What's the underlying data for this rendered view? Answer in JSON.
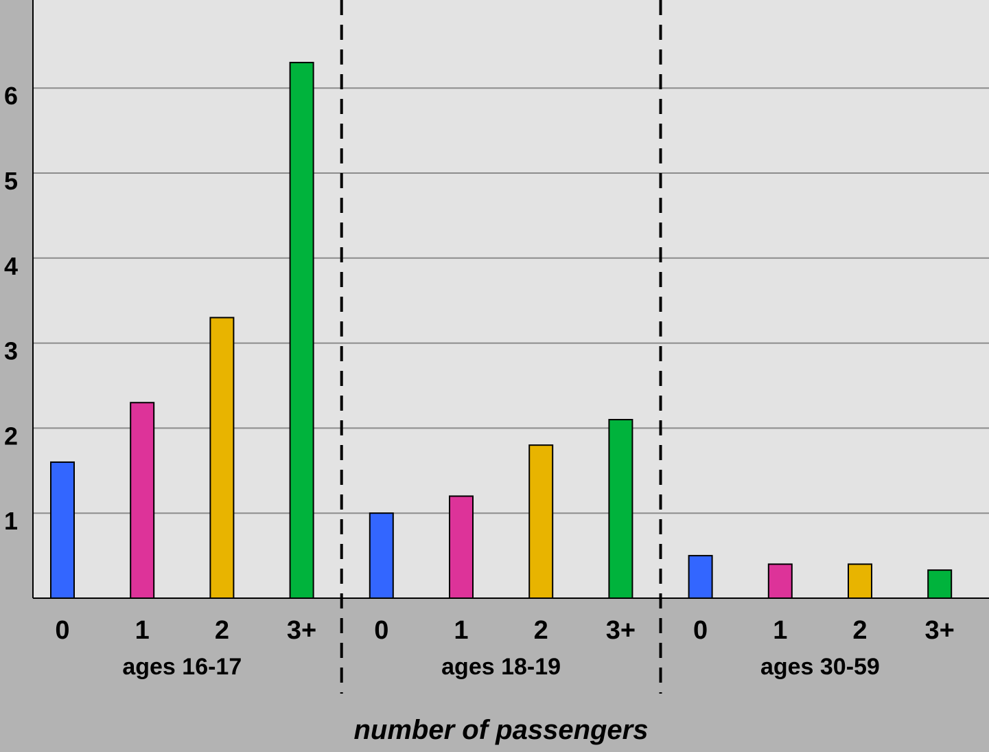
{
  "chart_data": {
    "type": "bar",
    "xlabel": "number of passengers",
    "ylabel": "",
    "ylim": [
      0,
      7
    ],
    "yticks": [
      1,
      2,
      3,
      4,
      5,
      6
    ],
    "grid": true,
    "groups": [
      {
        "label": "ages 16-17",
        "categories": [
          "0",
          "1",
          "2",
          "3+"
        ],
        "values": [
          1.6,
          2.3,
          3.3,
          6.3
        ]
      },
      {
        "label": "ages 18-19",
        "categories": [
          "0",
          "1",
          "2",
          "3+"
        ],
        "values": [
          1.0,
          1.2,
          1.8,
          2.1
        ]
      },
      {
        "label": "ages 30-59",
        "categories": [
          "0",
          "1",
          "2",
          "3+"
        ],
        "values": [
          0.5,
          0.4,
          0.4,
          0.33
        ]
      }
    ],
    "category_colors": [
      "#3366ff",
      "#dd3399",
      "#e8b400",
      "#00b33c"
    ],
    "colors": {
      "page_background": "#b3b3b3",
      "plot_background": "#e3e3e3",
      "gridline": "#8c8c8c"
    }
  }
}
